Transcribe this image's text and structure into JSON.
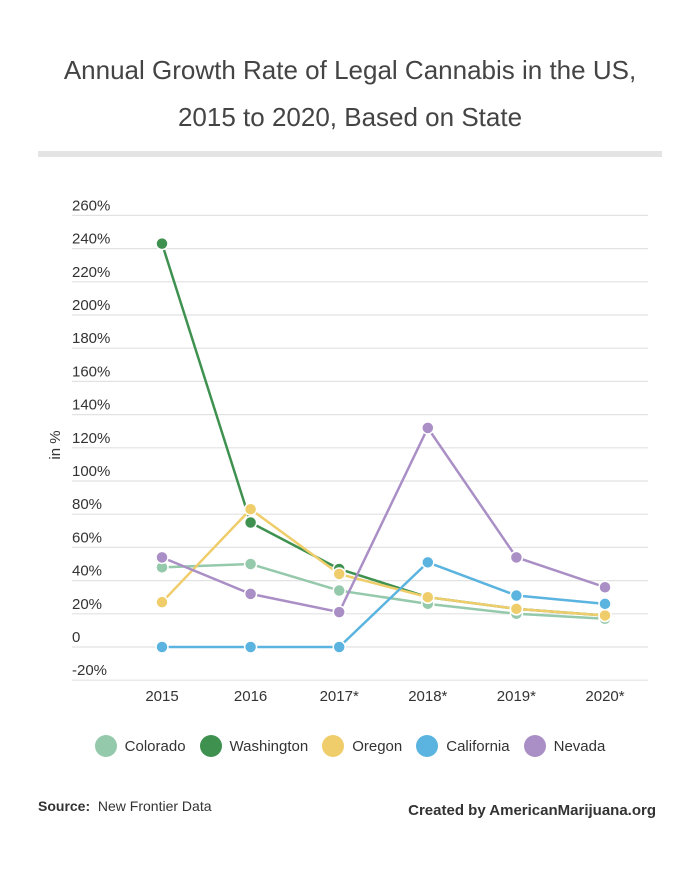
{
  "chart_data": {
    "type": "line",
    "title": "Annual Growth Rate of Legal Cannabis in the US, 2015 to 2020, Based on State",
    "title_lines": [
      "Annual Growth Rate of Legal Cannabis in the US,",
      "2015 to 2020, Based on State"
    ],
    "ylabel": "in %",
    "xlabel": "",
    "categories": [
      "2015",
      "2016",
      "2017*",
      "2018*",
      "2019*",
      "2020*"
    ],
    "ylim": [
      -20,
      260
    ],
    "yticks": [
      -20,
      0,
      20,
      40,
      60,
      80,
      100,
      120,
      140,
      160,
      180,
      200,
      220,
      240,
      260
    ],
    "ytick_labels": [
      "-20%",
      "0",
      "20%",
      "40%",
      "60%",
      "80%",
      "100%",
      "120%",
      "140%",
      "160%",
      "180%",
      "200%",
      "220%",
      "240%",
      "260%"
    ],
    "grid": true,
    "legend_position": "bottom",
    "series": [
      {
        "name": "Colorado",
        "color": "#95c9ab",
        "values": [
          48,
          50,
          34,
          26,
          20,
          17
        ]
      },
      {
        "name": "Washington",
        "color": "#3f9150",
        "values": [
          243,
          75,
          47,
          30,
          23,
          19
        ]
      },
      {
        "name": "Oregon",
        "color": "#efcd6a",
        "values": [
          27,
          83,
          44,
          30,
          23,
          19
        ]
      },
      {
        "name": "California",
        "color": "#5bb4df",
        "values": [
          0,
          0,
          0,
          51,
          31,
          26
        ]
      },
      {
        "name": "Nevada",
        "color": "#aa8fc6",
        "values": [
          54,
          32,
          21,
          132,
          54,
          36
        ]
      }
    ]
  },
  "footer": {
    "source_label": "Source:",
    "source_value": "New Frontier Data",
    "credit": "Created by AmericanMarijuana.org"
  }
}
